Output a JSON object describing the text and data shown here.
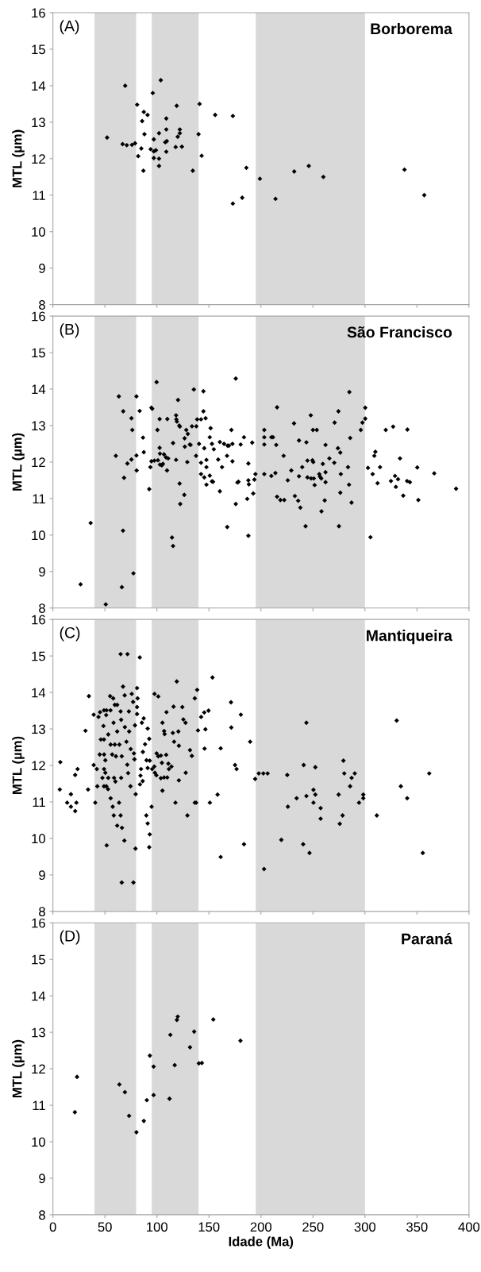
{
  "chart_data": [
    {
      "type": "scatter",
      "title": "Borborema",
      "ylabel": "MTL (µm)",
      "annotations": [
        "(A)"
      ],
      "xlim": [
        0,
        400
      ],
      "ylim": [
        8,
        16
      ],
      "xticks": [
        0,
        50,
        100,
        150,
        200,
        250,
        300,
        350,
        400
      ],
      "yticks": [
        8,
        9,
        10,
        11,
        12,
        13,
        14,
        15,
        16
      ],
      "tick_labels": "y",
      "grid": false,
      "legend": false,
      "marker": "diamond",
      "bands": [
        {
          "axis": "x",
          "from": 40,
          "to": 80,
          "color": "#d9d9d9"
        },
        {
          "axis": "x",
          "from": 95,
          "to": 140,
          "color": "#d9d9d9"
        },
        {
          "axis": "x",
          "from": 195,
          "to": 300,
          "color": "#d9d9d9"
        }
      ],
      "series": [
        {
          "color": "#000000",
          "x": [
            52.1,
            69.5,
            103.7,
            96,
            81,
            87.4,
            91,
            119,
            141,
            156,
            173,
            85.8,
            109,
            88,
            102,
            109,
            122,
            122,
            120,
            140,
            97,
            108.7,
            109.5,
            108,
            67,
            71,
            76,
            79,
            85,
            94,
            97,
            99,
            109,
            118,
            124,
            82,
            97,
            102,
            143,
            102,
            87,
            134.5,
            186,
            199,
            232,
            246,
            260,
            182,
            173,
            214,
            338,
            357
          ],
          "values": [
            12.58,
            14.0,
            14.15,
            13.8,
            13.48,
            13.28,
            13.2,
            13.45,
            13.5,
            13.2,
            13.17,
            13.03,
            13.1,
            12.67,
            12.7,
            12.8,
            12.8,
            12.7,
            12.6,
            12.67,
            12.53,
            null,
            12.48,
            12.45,
            12.4,
            12.37,
            12.38,
            12.42,
            12.28,
            12.26,
            12.2,
            12.23,
            12.19,
            12.32,
            12.33,
            12.07,
            12.02,
            12.0,
            12.08,
            11.8,
            11.67,
            11.67,
            11.75,
            11.45,
            11.65,
            11.8,
            11.5,
            10.93,
            10.77,
            10.9,
            11.7,
            11.0
          ]
        }
      ]
    },
    {
      "type": "scatter",
      "title": "São Francisco",
      "ylabel": "MTL (µm)",
      "annotations": [
        "(B)"
      ],
      "xlim": [
        0,
        400
      ],
      "ylim": [
        8,
        16
      ],
      "xticks": [
        0,
        50,
        100,
        150,
        200,
        250,
        300,
        350,
        400
      ],
      "yticks": [
        8,
        9,
        10,
        11,
        12,
        13,
        14,
        15,
        16
      ],
      "tick_labels": "y",
      "grid": false,
      "legend": false,
      "marker": "diamond",
      "bands": [
        {
          "axis": "x",
          "from": 40,
          "to": 80,
          "color": "#d9d9d9"
        },
        {
          "axis": "x",
          "from": 95,
          "to": 140,
          "color": "#d9d9d9"
        },
        {
          "axis": "x",
          "from": 195,
          "to": 300,
          "color": "#d9d9d9"
        }
      ],
      "series": [
        {
          "color": "#000000",
          "x": [
            26.6,
            36.3,
            50.8,
            66.3,
            67.4,
            77.4,
            63.4,
            80.3,
            67.6,
            75.5,
            76.3,
            83.4,
            86.6,
            87.4,
            60.5,
            75.5,
            71.6,
            80.3,
            80.5,
            68.4,
            92.6,
            99.7,
            94.7,
            95.5,
            100.5,
            102.6,
            110,
            102.6,
            93.7,
            94.7,
            97.6,
            101,
            102.9,
            106.8,
            108.7,
            110.8,
            102.9,
            104.7,
            105.8,
            109.7,
            115.5,
            118.4,
            118.7,
            119.2,
            120.3,
            121.5,
            122.0,
            118.4,
            128.2,
            129.7,
            126.6,
            131.6,
            132.4,
            126.8,
            129.2,
            121.8,
            126.3,
            122.4,
            114.5,
            115.5,
            135.5,
            133.7,
            137.9,
            138.7,
            142.4,
            146.8,
            144.7,
            144.7,
            140.5,
            137.6,
            142.4,
            145.5,
            151.6,
            150.8,
            152.9,
            154.7,
            147.6,
            147.6,
            142.4,
            145.5,
            150.8,
            152.9,
            153.9,
            147.6,
            158.9,
            162.6,
            160.5,
            160.5,
            164.5,
            167.9,
            169.2,
            172.6,
            167.4,
            172.6,
            171.6,
            175.8,
            175.8,
            167.6,
            177.4,
            178.4,
            180.5,
            183.7,
            191.6,
            187.9,
            187.9,
            188.4,
            193.7,
            192.6,
            186.8,
            187.9,
            194.7,
            203.2,
            203.2,
            203.2,
            210,
            211.6,
            214.7,
            203.2,
            210,
            213.9,
            215.5,
            221.8,
            225.8,
            215.5,
            218.7,
            222.4,
            231.8,
            236.6,
            243.7,
            229.2,
            236.6,
            239.7,
            244.7,
            249.5,
            250.3,
            244.7,
            248.2,
            250.8,
            251.6,
            256.1,
            256.8,
            258.0,
            247.9,
            250,
            253.7,
            232.6,
            235.8,
            237.9,
            242.9,
            258.2,
            261.3,
            262.1,
            262.1,
            259.5,
            262.1,
            265.8,
            270.5,
            270.8,
            274.5,
            274,
            276.3,
            276.8,
            276.3,
            275,
            285,
            285.8,
            283.7,
            284.7,
            287.1,
            296,
            297.6,
            300.3,
            300.3,
            302.9,
            307.4,
            305.3,
            309,
            310,
            312.1,
            314.5,
            320,
            327.1,
            325,
            328.9,
            329.7,
            331.8,
            333.7,
            336.8,
            340.8,
            340.5,
            343.2,
            350.3,
            351.3,
            366.6,
            387.6
          ],
          "values": [
            8.65,
            10.33,
            8.1,
            8.57,
            10.12,
            8.95,
            13.8,
            13.8,
            13.39,
            13.2,
            12.88,
            13.4,
            12.67,
            12.27,
            12.17,
            12.07,
            11.96,
            12.18,
            11.77,
            11.57,
            11.26,
            14.19,
            13.49,
            13.46,
            12.88,
            13.18,
            13.18,
            12.39,
            11.86,
            12.02,
            12.04,
            12.05,
            12.23,
            12.21,
            12.13,
            12.1,
            11.93,
            11.91,
            11.95,
            11.77,
            12.52,
            13.28,
            13.17,
            13.11,
            13.7,
            13.0,
            12.97,
            12.06,
            12.88,
            12.77,
            12.65,
            12.48,
            12.47,
            12.42,
            12.0,
            11.41,
            11.1,
            10.85,
            9.93,
            9.7,
            13.99,
            12.98,
            12.98,
            13.17,
            13.17,
            13.2,
            13.94,
            13.39,
            12.5,
            12.17,
            11.98,
            12.38,
            12.93,
            12.68,
            12.5,
            12.35,
            12.06,
            11.86,
            11.67,
            11.58,
            11.63,
            11.47,
            11.46,
            11.38,
            12.07,
            11.86,
            11.2,
            12.55,
            12.5,
            12.45,
            12.45,
            12.5,
            12.17,
            12.02,
            12.88,
            14.29,
            10.85,
            10.22,
            11.44,
            11.46,
            12.48,
            12.68,
            12.53,
            11.96,
            11.5,
            11.39,
            11.52,
            11.14,
            10.99,
            9.98,
            11.67,
            12.88,
            12.68,
            12.48,
            12.68,
            12.68,
            12.47,
            11.67,
            11.62,
            11.7,
            13.5,
            12.17,
            11.5,
            11.05,
            10.96,
            10.96,
            13.06,
            12.59,
            12.54,
            11.77,
            11.61,
            11.86,
            12.04,
            12.05,
            12.0,
            11.58,
            11.55,
            11.55,
            11.37,
            11.67,
            11.6,
            11.55,
            13.28,
            12.88,
            12.88,
            11.07,
            10.94,
            10.75,
            10.24,
            10.65,
            10.95,
            11.45,
            11.72,
            11.95,
            12.47,
            12.1,
            11.98,
            13.08,
            13.39,
            12.38,
            12.26,
            11.67,
            11.16,
            10.24,
            13.92,
            12.66,
            11.86,
            11.38,
            10.89,
            12.88,
            13.08,
            13.19,
            13.49,
            11.84,
            11.67,
            9.94,
            12.17,
            12.28,
            11.42,
            11.86,
            12.88,
            12.97,
            11.48,
            11.62,
            11.32,
            11.53,
            12.1,
            11.08,
            12.89,
            11.48,
            11.45,
            11.85,
            10.96,
            11.69,
            11.27
          ]
        }
      ]
    },
    {
      "type": "scatter",
      "title": "Mantiqueira",
      "ylabel": "MTL (µm)",
      "annotations": [
        "(C)"
      ],
      "xlim": [
        0,
        400
      ],
      "ylim": [
        8,
        16
      ],
      "xticks": [
        0,
        50,
        100,
        150,
        200,
        250,
        300,
        350,
        400
      ],
      "yticks": [
        8,
        9,
        10,
        11,
        12,
        13,
        14,
        15,
        16
      ],
      "tick_labels": "y",
      "grid": false,
      "legend": false,
      "marker": "diamond",
      "bands": [
        {
          "axis": "x",
          "from": 40,
          "to": 80,
          "color": "#d9d9d9"
        },
        {
          "axis": "x",
          "from": 95,
          "to": 140,
          "color": "#d9d9d9"
        },
        {
          "axis": "x",
          "from": 195,
          "to": 300,
          "color": "#d9d9d9"
        }
      ],
      "series": [
        {
          "color": "#000000",
          "x": [
            7.1,
            6.6,
            13.7,
            17.3,
            21.4,
            22.6,
            17.3,
            21.4,
            23.7,
            33.8,
            31.3,
            34.6,
            39.2,
            40.7,
            39.2,
            42.2,
            42.7,
            43.8,
            45.3,
            49.1,
            51.6,
            55.4,
            46.1,
            49.1,
            48.6,
            51.2,
            53.2,
            45,
            49.2,
            50.4,
            49.2,
            50.4,
            47.6,
            53.2,
            49.1,
            51.4,
            53,
            55.5,
            57.5,
            58.5,
            61.8,
            65.1,
            63.6,
            51.7,
            66.2,
            77.4,
            68.7,
            66.4,
            79.4,
            55,
            58,
            59.5,
            65.1,
            71.7,
            83.5,
            67.4,
            69,
            75.8,
            80.9,
            81.4,
            80.9,
            61.8,
            65.1,
            58.3,
            61.8,
            65.6,
            69.2,
            73.3,
            78.9,
            80.9,
            73,
            77.1,
            55.5,
            59.5,
            63.9,
            57,
            60.6,
            66.2,
            70.7,
            74.8,
            77.9,
            78.4,
            71.5,
            72.3,
            65.6,
            60.1,
            58.8,
            74.6,
            79.6,
            83.7,
            84.2,
            84.7,
            86.3,
            91.1,
            90,
            86.5,
            88.6,
            91.1,
            85.5,
            87.3,
            92.6,
            93.1,
            95.4,
            97.5,
            99.7,
            101.3,
            103.8,
            104.8,
            108.9,
            111,
            114,
            98,
            99.5,
            103.8,
            106.9,
            109.9,
            111.5,
            105.3,
            89.8,
            91.1,
            94.9,
            93.1,
            92.6,
            97.7,
            101.3,
            105.3,
            106.9,
            107.4,
            109.2,
            115.3,
            116.5,
            116,
            119.1,
            120.6,
            121.1,
            124.4,
            125.4,
            127.5,
            127.7,
            121.1,
            117.8,
            129.3,
            131.8,
            133.6,
            136.4,
            137.7,
            136.4,
            138.7,
            139.5,
            142.5,
            145.5,
            149.6,
            146.6,
            145.8,
            150.9,
            158.3,
            161.3,
            161.3,
            153.4,
            171.2,
            171.5,
            180.7,
            189.6,
            175.1,
            176.6,
            183.7,
            194.4,
            197.9,
            202.3,
            206.4,
            203,
            219.6,
            225.3,
            225.9,
            234.3,
            241.1,
            243.7,
            240.6,
            246.7,
            243.7,
            250.5,
            252.3,
            250.5,
            252.3,
            257.4,
            257.4,
            274.7,
            275.8,
            278.5,
            279.3,
            280.1,
            285.7,
            287.2,
            290.2,
            294.3,
            298.4,
            298.4,
            311.4,
            330.5,
            334.5,
            340.6,
            361.8,
            355.6
          ],
          "values": [
            12.09,
            11.34,
            10.98,
            10.87,
            10.75,
            10.98,
            11.21,
            11.74,
            11.9,
            11.34,
            12.95,
            13.9,
            13.39,
            10.98,
            12.01,
            11.9,
            11.43,
            13.33,
            13.46,
            13.51,
            13.51,
            13.51,
            12.71,
            12.71,
            13.08,
            13.38,
            12.85,
            12.3,
            12.3,
            12.14,
            11.9,
            11.8,
            11.66,
            11.66,
            11.43,
            11.43,
            11.35,
            11.1,
            10.87,
            10.63,
            10.35,
            10.63,
            10.98,
            9.81,
            8.79,
            8.79,
            9.94,
            10.29,
            9.72,
            13.9,
            13.84,
            13.66,
            15.05,
            15.05,
            14.96,
            14.16,
            13.92,
            13.96,
            14.12,
            13.84,
            13.6,
            13.66,
            13.48,
            13.17,
            12.93,
            13.25,
            13.05,
            12.93,
            13.1,
            13.41,
            13.48,
            13.74,
            12.57,
            12.57,
            12.57,
            12.3,
            12.25,
            12.25,
            12.65,
            12.45,
            12.33,
            12.17,
            12.02,
            11.79,
            11.66,
            11.56,
            11.66,
            11.43,
            11.21,
            11.48,
            11.72,
            11.9,
            11.57,
            11.93,
            12.14,
            12.37,
            12.58,
            13.01,
            13.17,
            13.29,
            12.73,
            12.13,
            11.9,
            11.97,
            12.33,
            12.25,
            12.27,
            12.07,
            12.29,
            12.05,
            11.97,
            11.8,
            11.73,
            11.65,
            11.67,
            11.67,
            11.9,
            11.31,
            10.63,
            10.41,
            10.87,
            10.11,
            9.76,
            13.96,
            13.89,
            13.17,
            12.94,
            12.86,
            13.46,
            12.89,
            12.65,
            13.61,
            14.3,
            12.93,
            12.54,
            13.6,
            13.26,
            13.17,
            11.8,
            11.59,
            10.98,
            10.63,
            12.42,
            12.26,
            10.98,
            10.98,
            13.84,
            14.07,
            12.96,
            13.33,
            13.45,
            13.5,
            12.99,
            12.46,
            10.98,
            11.2,
            12.47,
            9.49,
            14.41,
            13.73,
            13.04,
            13.39,
            12.65,
            12.01,
            11.9,
            9.84,
            11.63,
            11.78,
            11.78,
            11.78,
            9.16,
            9.96,
            11.74,
            10.87,
            11.1,
            12.01,
            13.17,
            9.84,
            9.6,
            11.16,
            11.33,
            11.2,
            10.98,
            11.95,
            10.83,
            10.54,
            11.2,
            10.4,
            10.63,
            12.13,
            11.78,
            11.43,
            11.66,
            11.78,
            10.98,
            11.2,
            11.1,
            10.63,
            13.23,
            11.43,
            11.1,
            11.78,
            9.6
          ]
        }
      ]
    },
    {
      "type": "scatter",
      "title": "Paraná",
      "ylabel": "MTL (µm)",
      "xlabel": "Idade (Ma)",
      "annotations": [
        "(D)"
      ],
      "xlim": [
        0,
        400
      ],
      "ylim": [
        8,
        16
      ],
      "xticks": [
        0,
        50,
        100,
        150,
        200,
        250,
        300,
        350,
        400
      ],
      "yticks": [
        8,
        9,
        10,
        11,
        12,
        13,
        14,
        15,
        16
      ],
      "grid": false,
      "legend": false,
      "marker": "diamond",
      "bands": [
        {
          "axis": "x",
          "from": 40,
          "to": 80,
          "color": "#d9d9d9"
        },
        {
          "axis": "x",
          "from": 95,
          "to": 140,
          "color": "#d9d9d9"
        },
        {
          "axis": "x",
          "from": 195,
          "to": 300,
          "color": "#d9d9d9"
        }
      ],
      "series": [
        {
          "color": "#000000",
          "x": [
            21.1,
            23.2,
            63.9,
            69.2,
            73.2,
            80.3,
            87.4,
            90.3,
            93.2,
            96.8,
            96.8,
            112.1,
            112.9,
            117.1,
            119.2,
            120,
            131.8,
            135.8,
            140.3,
            143.2,
            154.2,
            180.3
          ],
          "values": [
            10.81,
            11.78,
            11.57,
            11.36,
            10.71,
            10.26,
            10.57,
            11.14,
            12.36,
            12.06,
            11.28,
            11.18,
            12.93,
            12.1,
            13.34,
            13.43,
            12.59,
            13.02,
            12.15,
            12.16,
            13.35,
            12.77
          ]
        }
      ]
    }
  ]
}
